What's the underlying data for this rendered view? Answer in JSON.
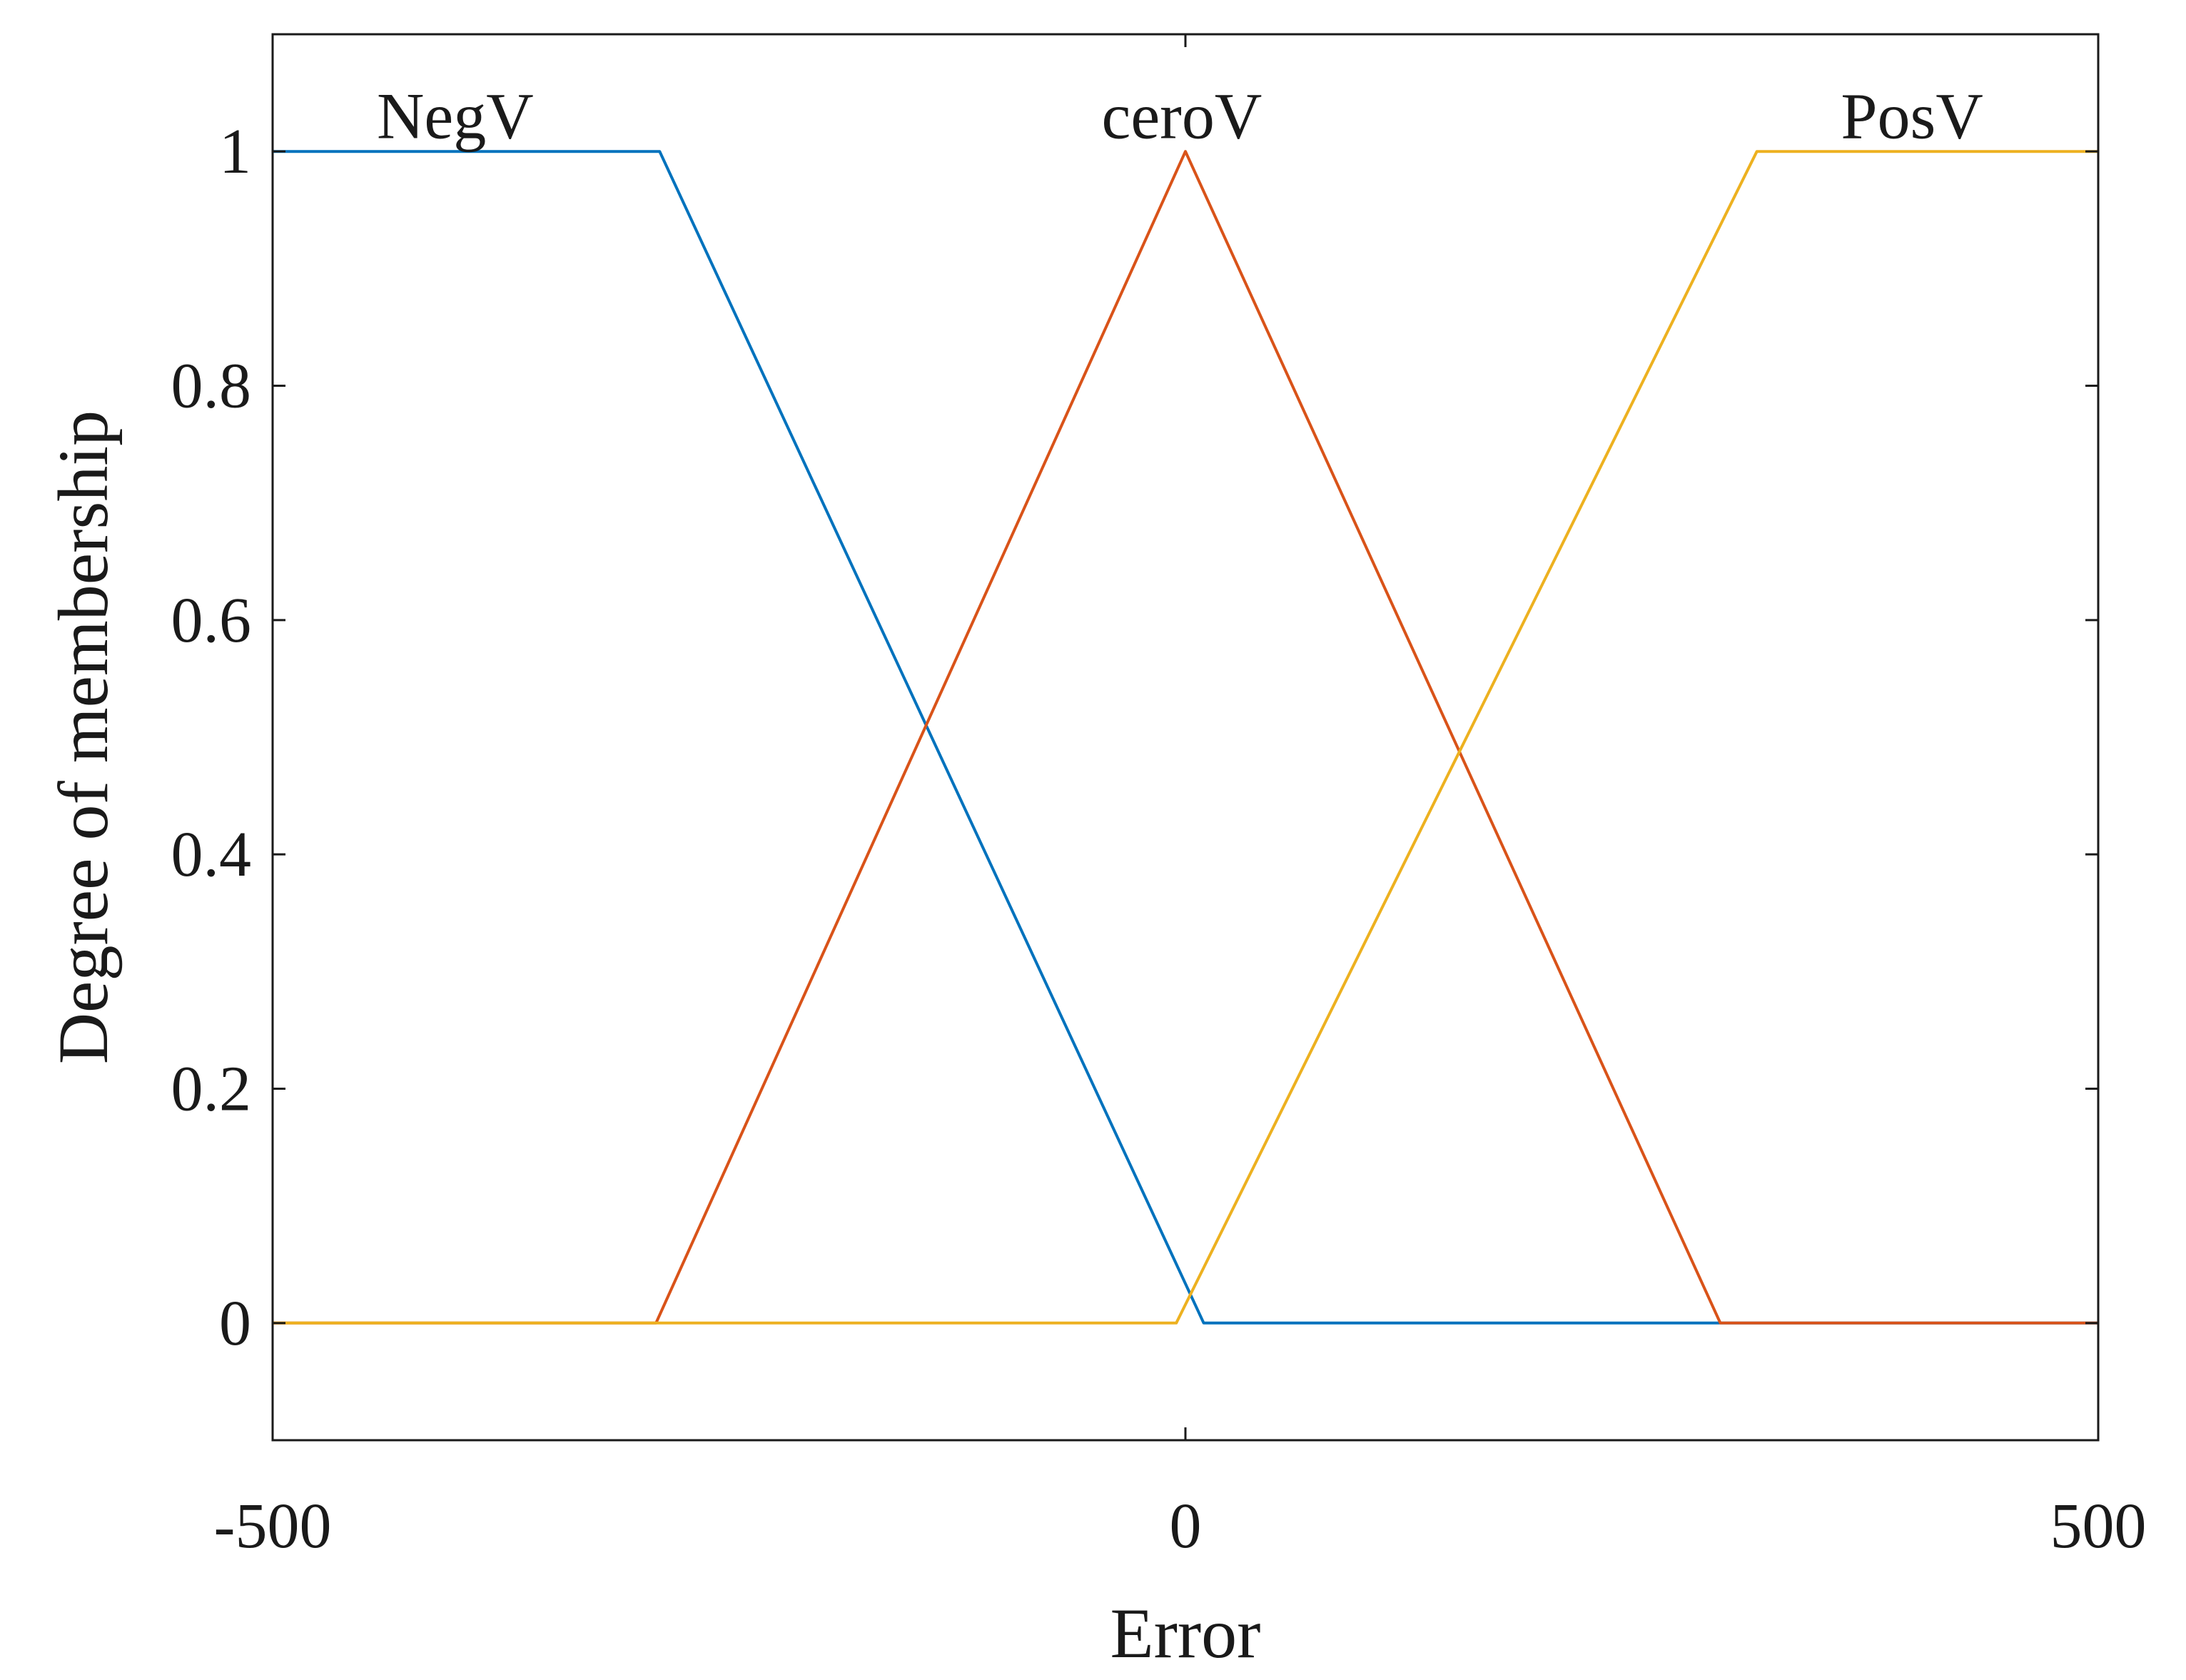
{
  "chart_data": {
    "type": "line",
    "title": "",
    "xlabel": "Error",
    "ylabel": "Degree of membership",
    "xlim": [
      -500,
      500
    ],
    "ylim": [
      -0.1,
      1.1
    ],
    "xticks": [
      -500,
      0,
      500
    ],
    "xtick_labels": [
      "-500",
      "0",
      "500"
    ],
    "yticks": [
      0,
      0.2,
      0.4,
      0.6,
      0.8,
      1
    ],
    "ytick_labels": [
      "0",
      "0.2",
      "0.4",
      "0.6",
      "0.8",
      "1"
    ],
    "grid": false,
    "legend": "none",
    "series": [
      {
        "name": "NegV",
        "label_at": [
          -400,
          1.02
        ],
        "color": "#0072BD",
        "x": [
          -500,
          -288,
          10,
          500
        ],
        "y": [
          1,
          1,
          0,
          0
        ]
      },
      {
        "name": "ceroV",
        "label_at": [
          -2,
          1.02
        ],
        "color": "#D95319",
        "x": [
          -500,
          -290,
          0,
          293,
          500
        ],
        "y": [
          0,
          0,
          1,
          0,
          0
        ]
      },
      {
        "name": "PosV",
        "label_at": [
          398,
          1.02
        ],
        "color": "#EDB120",
        "x": [
          -500,
          -5,
          313,
          500
        ],
        "y": [
          0,
          0,
          1,
          1
        ]
      }
    ]
  }
}
